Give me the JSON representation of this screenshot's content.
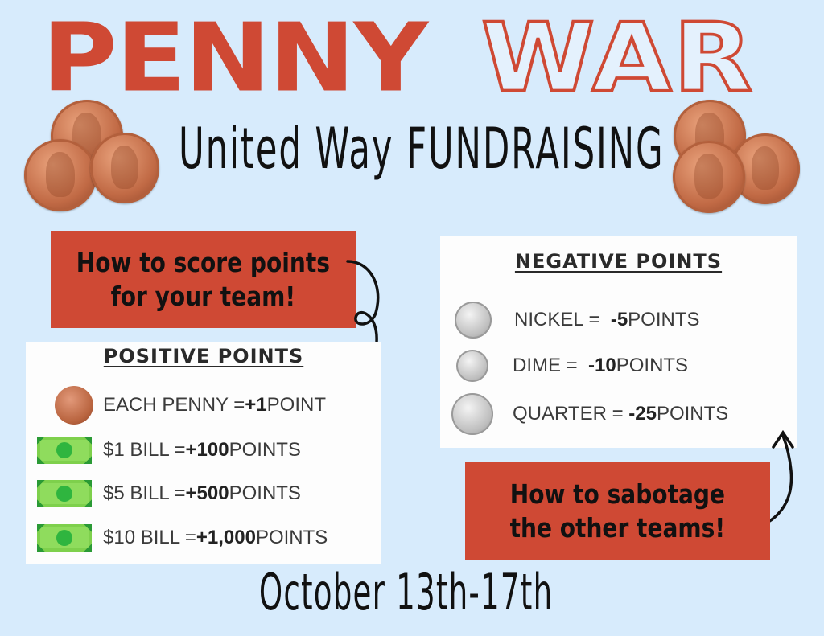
{
  "title": {
    "word1": "PENNY",
    "word2": "WAR"
  },
  "subtitle": "United Way FUNDRAISING",
  "callout_score": "How to score points\nfor your team!",
  "callout_sabotage": "How to sabotage\nthe other teams!",
  "positive": {
    "heading": "POSITIVE POINTS",
    "items": [
      {
        "icon": "penny-icon",
        "label": "EACH PENNY = ",
        "value": "+1",
        "unit": " POINT"
      },
      {
        "icon": "dollar-bill-icon",
        "label": "$1 BILL = ",
        "value": "+100",
        "unit": " POINTS"
      },
      {
        "icon": "dollar-bill-icon",
        "label": "$5 BILL = ",
        "value": "+500",
        "unit": " POINTS"
      },
      {
        "icon": "dollar-bill-icon",
        "label": "$10 BILL = ",
        "value": "+1,000",
        "unit": " POINTS"
      }
    ]
  },
  "negative": {
    "heading": "NEGATIVE POINTS",
    "items": [
      {
        "icon": "nickel-icon",
        "label": "NICKEL =  ",
        "value": "-5",
        "unit": " POINTS"
      },
      {
        "icon": "dime-icon",
        "label": "DIME =  ",
        "value": "-10",
        "unit": " POINTS"
      },
      {
        "icon": "quarter-icon",
        "label": "QUARTER = ",
        "value": "-25",
        "unit": " POINTS"
      }
    ]
  },
  "date": "October 13th-17th",
  "colors": {
    "background": "#d7ebfc",
    "accent_red": "#cf4934",
    "bill_green": "#8fdc5d"
  }
}
